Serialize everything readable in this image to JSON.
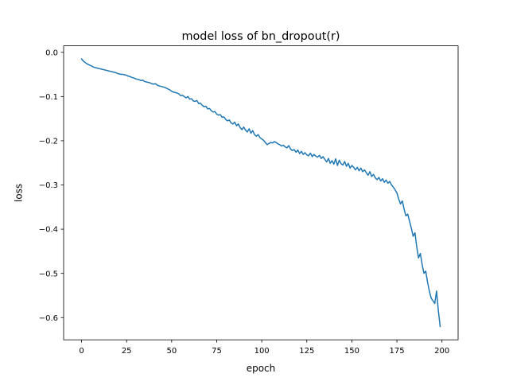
{
  "chart_data": {
    "type": "line",
    "title": "model loss of bn_dropout(r)",
    "xlabel": "epoch",
    "ylabel": "loss",
    "xlim": [
      -9.95,
      208.95
    ],
    "ylim": [
      -0.6503,
      0.0147
    ],
    "xticks": [
      0,
      25,
      50,
      75,
      100,
      125,
      150,
      175,
      200
    ],
    "yticks": [
      0.0,
      -0.1,
      -0.2,
      -0.3,
      -0.4,
      -0.5,
      -0.6
    ],
    "xtick_labels": [
      "0",
      "25",
      "50",
      "75",
      "100",
      "125",
      "150",
      "175",
      "200"
    ],
    "ytick_labels": [
      "0.0",
      "−0.1",
      "−0.2",
      "−0.3",
      "−0.4",
      "−0.5",
      "−0.6"
    ],
    "grid": false,
    "legend": "none",
    "colors": {
      "line": "#1f77b4",
      "axes": "#000000",
      "background": "#ffffff"
    },
    "series": [
      {
        "points": [
          [
            0,
            -0.015
          ],
          [
            1,
            -0.02
          ],
          [
            2,
            -0.023
          ],
          [
            3,
            -0.026
          ],
          [
            4,
            -0.028
          ],
          [
            5,
            -0.03
          ],
          [
            6,
            -0.032
          ],
          [
            7,
            -0.034
          ],
          [
            8,
            -0.035
          ],
          [
            9,
            -0.036
          ],
          [
            10,
            -0.037
          ],
          [
            11,
            -0.038
          ],
          [
            12,
            -0.039
          ],
          [
            13,
            -0.04
          ],
          [
            14,
            -0.041
          ],
          [
            15,
            -0.042
          ],
          [
            16,
            -0.043
          ],
          [
            17,
            -0.044
          ],
          [
            18,
            -0.045
          ],
          [
            19,
            -0.046
          ],
          [
            20,
            -0.048
          ],
          [
            21,
            -0.049
          ],
          [
            22,
            -0.05
          ],
          [
            23,
            -0.05
          ],
          [
            24,
            -0.051
          ],
          [
            25,
            -0.052
          ],
          [
            26,
            -0.054
          ],
          [
            27,
            -0.055
          ],
          [
            28,
            -0.057
          ],
          [
            29,
            -0.058
          ],
          [
            30,
            -0.06
          ],
          [
            31,
            -0.061
          ],
          [
            32,
            -0.062
          ],
          [
            33,
            -0.064
          ],
          [
            34,
            -0.063
          ],
          [
            35,
            -0.066
          ],
          [
            36,
            -0.067
          ],
          [
            37,
            -0.068
          ],
          [
            38,
            -0.069
          ],
          [
            39,
            -0.071
          ],
          [
            40,
            -0.072
          ],
          [
            41,
            -0.071
          ],
          [
            42,
            -0.074
          ],
          [
            43,
            -0.076
          ],
          [
            44,
            -0.077
          ],
          [
            45,
            -0.078
          ],
          [
            46,
            -0.079
          ],
          [
            47,
            -0.081
          ],
          [
            48,
            -0.083
          ],
          [
            49,
            -0.085
          ],
          [
            50,
            -0.088
          ],
          [
            51,
            -0.09
          ],
          [
            52,
            -0.091
          ],
          [
            53,
            -0.092
          ],
          [
            54,
            -0.094
          ],
          [
            55,
            -0.098
          ],
          [
            56,
            -0.097
          ],
          [
            57,
            -0.1
          ],
          [
            58,
            -0.103
          ],
          [
            59,
            -0.1
          ],
          [
            60,
            -0.106
          ],
          [
            61,
            -0.105
          ],
          [
            62,
            -0.11
          ],
          [
            63,
            -0.111
          ],
          [
            64,
            -0.109
          ],
          [
            65,
            -0.116
          ],
          [
            66,
            -0.115
          ],
          [
            67,
            -0.12
          ],
          [
            68,
            -0.123
          ],
          [
            69,
            -0.122
          ],
          [
            70,
            -0.128
          ],
          [
            71,
            -0.127
          ],
          [
            72,
            -0.132
          ],
          [
            73,
            -0.135
          ],
          [
            74,
            -0.134
          ],
          [
            75,
            -0.14
          ],
          [
            76,
            -0.142
          ],
          [
            77,
            -0.141
          ],
          [
            78,
            -0.147
          ],
          [
            79,
            -0.146
          ],
          [
            80,
            -0.152
          ],
          [
            81,
            -0.155
          ],
          [
            82,
            -0.153
          ],
          [
            83,
            -0.16
          ],
          [
            84,
            -0.162
          ],
          [
            85,
            -0.158
          ],
          [
            86,
            -0.166
          ],
          [
            87,
            -0.162
          ],
          [
            88,
            -0.17
          ],
          [
            89,
            -0.175
          ],
          [
            90,
            -0.169
          ],
          [
            91,
            -0.176
          ],
          [
            92,
            -0.18
          ],
          [
            93,
            -0.173
          ],
          [
            94,
            -0.183
          ],
          [
            95,
            -0.177
          ],
          [
            96,
            -0.186
          ],
          [
            97,
            -0.19
          ],
          [
            98,
            -0.186
          ],
          [
            99,
            -0.193
          ],
          [
            100,
            -0.196
          ],
          [
            101,
            -0.199
          ],
          [
            102,
            -0.204
          ],
          [
            103,
            -0.209
          ],
          [
            104,
            -0.206
          ],
          [
            105,
            -0.204
          ],
          [
            106,
            -0.205
          ],
          [
            107,
            -0.202
          ],
          [
            108,
            -0.204
          ],
          [
            109,
            -0.207
          ],
          [
            110,
            -0.209
          ],
          [
            111,
            -0.212
          ],
          [
            112,
            -0.21
          ],
          [
            113,
            -0.214
          ],
          [
            114,
            -0.216
          ],
          [
            115,
            -0.211
          ],
          [
            116,
            -0.219
          ],
          [
            117,
            -0.222
          ],
          [
            118,
            -0.22
          ],
          [
            119,
            -0.226
          ],
          [
            120,
            -0.221
          ],
          [
            121,
            -0.229
          ],
          [
            122,
            -0.224
          ],
          [
            123,
            -0.231
          ],
          [
            124,
            -0.227
          ],
          [
            125,
            -0.232
          ],
          [
            126,
            -0.234
          ],
          [
            127,
            -0.228
          ],
          [
            128,
            -0.236
          ],
          [
            129,
            -0.231
          ],
          [
            130,
            -0.235
          ],
          [
            131,
            -0.237
          ],
          [
            132,
            -0.233
          ],
          [
            133,
            -0.24
          ],
          [
            134,
            -0.236
          ],
          [
            135,
            -0.242
          ],
          [
            136,
            -0.248
          ],
          [
            137,
            -0.24
          ],
          [
            138,
            -0.251
          ],
          [
            139,
            -0.245
          ],
          [
            140,
            -0.253
          ],
          [
            141,
            -0.241
          ],
          [
            142,
            -0.256
          ],
          [
            143,
            -0.244
          ],
          [
            144,
            -0.252
          ],
          [
            145,
            -0.255
          ],
          [
            146,
            -0.247
          ],
          [
            147,
            -0.258
          ],
          [
            148,
            -0.251
          ],
          [
            149,
            -0.262
          ],
          [
            150,
            -0.256
          ],
          [
            151,
            -0.26
          ],
          [
            152,
            -0.266
          ],
          [
            153,
            -0.26
          ],
          [
            154,
            -0.268
          ],
          [
            155,
            -0.262
          ],
          [
            156,
            -0.27
          ],
          [
            157,
            -0.266
          ],
          [
            158,
            -0.272
          ],
          [
            159,
            -0.278
          ],
          [
            160,
            -0.27
          ],
          [
            161,
            -0.281
          ],
          [
            162,
            -0.276
          ],
          [
            163,
            -0.284
          ],
          [
            164,
            -0.288
          ],
          [
            165,
            -0.283
          ],
          [
            166,
            -0.291
          ],
          [
            167,
            -0.286
          ],
          [
            168,
            -0.294
          ],
          [
            169,
            -0.289
          ],
          [
            170,
            -0.296
          ],
          [
            171,
            -0.292
          ],
          [
            172,
            -0.3
          ],
          [
            173,
            -0.305
          ],
          [
            174,
            -0.311
          ],
          [
            175,
            -0.318
          ],
          [
            176,
            -0.332
          ],
          [
            177,
            -0.343
          ],
          [
            178,
            -0.336
          ],
          [
            179,
            -0.355
          ],
          [
            180,
            -0.37
          ],
          [
            181,
            -0.366
          ],
          [
            182,
            -0.382
          ],
          [
            183,
            -0.398
          ],
          [
            184,
            -0.416
          ],
          [
            185,
            -0.408
          ],
          [
            186,
            -0.44
          ],
          [
            187,
            -0.465
          ],
          [
            188,
            -0.455
          ],
          [
            189,
            -0.48
          ],
          [
            190,
            -0.5
          ],
          [
            191,
            -0.495
          ],
          [
            192,
            -0.52
          ],
          [
            193,
            -0.54
          ],
          [
            194,
            -0.556
          ],
          [
            195,
            -0.562
          ],
          [
            196,
            -0.568
          ],
          [
            197,
            -0.54
          ],
          [
            198,
            -0.585
          ],
          [
            199,
            -0.62
          ]
        ]
      }
    ]
  }
}
